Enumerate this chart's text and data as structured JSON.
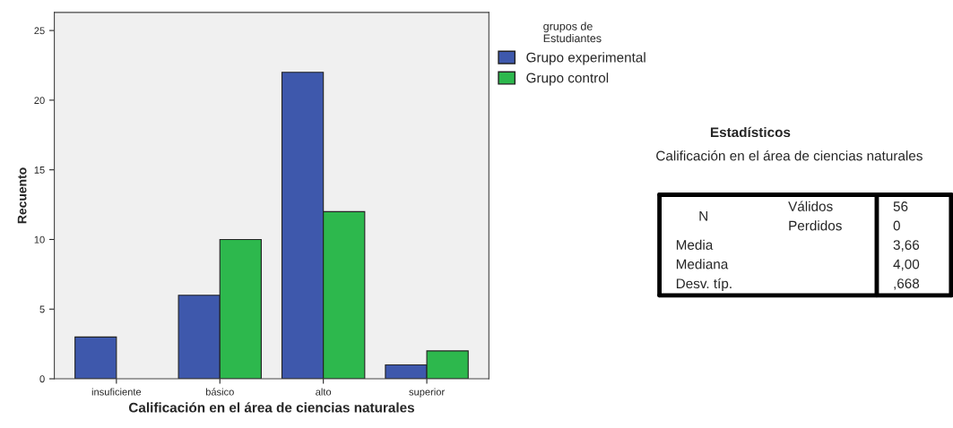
{
  "chart_data": [
    {
      "type": "bar",
      "xlabel": "Calificación en el área de ciencias naturales",
      "ylabel": "Recuento",
      "legend_title": "grupos de\nEstudiantes",
      "categories": [
        "insuficiente",
        "básico",
        "alto",
        "superior"
      ],
      "series": [
        {
          "name": "Grupo experimental",
          "color": "#3e58ac",
          "values": [
            3,
            6,
            22,
            1
          ]
        },
        {
          "name": "Grupo control",
          "color": "#2db84d",
          "values": [
            null,
            10,
            12,
            2
          ]
        }
      ],
      "ylim": [
        0,
        26.3
      ],
      "yticks": [
        0,
        5,
        10,
        15,
        20,
        25
      ],
      "grid": false,
      "legend": "top right"
    },
    {
      "type": "other",
      "title": "Estadísticos",
      "subtitle": "Calificación en el área de ciencias naturales",
      "annotations": [
        "N",
        "Válidos",
        "56",
        "Perdidos",
        "0",
        "Media",
        "3,66",
        "Mediana",
        "4,00",
        "Desv. típ.",
        ",668"
      ]
    }
  ]
}
